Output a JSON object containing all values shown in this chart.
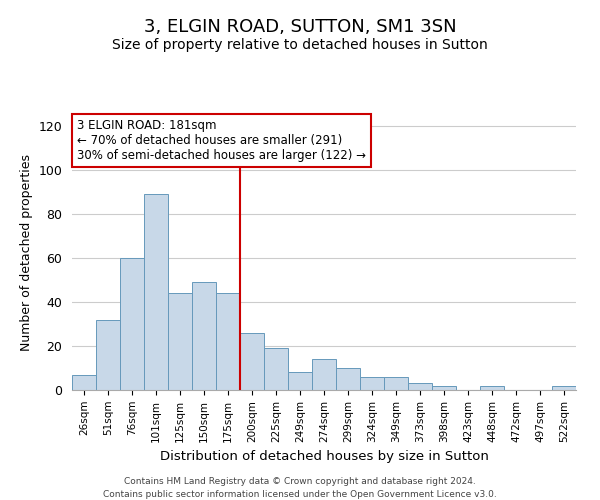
{
  "title": "3, ELGIN ROAD, SUTTON, SM1 3SN",
  "subtitle": "Size of property relative to detached houses in Sutton",
  "xlabel": "Distribution of detached houses by size in Sutton",
  "ylabel": "Number of detached properties",
  "categories": [
    "26sqm",
    "51sqm",
    "76sqm",
    "101sqm",
    "125sqm",
    "150sqm",
    "175sqm",
    "200sqm",
    "225sqm",
    "249sqm",
    "274sqm",
    "299sqm",
    "324sqm",
    "349sqm",
    "373sqm",
    "398sqm",
    "423sqm",
    "448sqm",
    "472sqm",
    "497sqm",
    "522sqm"
  ],
  "values": [
    7,
    32,
    60,
    89,
    44,
    49,
    44,
    26,
    19,
    8,
    14,
    10,
    6,
    6,
    3,
    2,
    0,
    2,
    0,
    0,
    2
  ],
  "bar_color": "#c8d8e8",
  "bar_edge_color": "#6699bb",
  "vline_x": 6.5,
  "vline_color": "#cc0000",
  "annotation_line1": "3 ELGIN ROAD: 181sqm",
  "annotation_line2": "← 70% of detached houses are smaller (291)",
  "annotation_line3": "30% of semi-detached houses are larger (122) →",
  "annotation_box_color": "#ffffff",
  "annotation_box_edge_color": "#cc0000",
  "ylim": [
    0,
    125
  ],
  "footer1": "Contains HM Land Registry data © Crown copyright and database right 2024.",
  "footer2": "Contains public sector information licensed under the Open Government Licence v3.0.",
  "background_color": "#ffffff",
  "grid_color": "#cccccc"
}
